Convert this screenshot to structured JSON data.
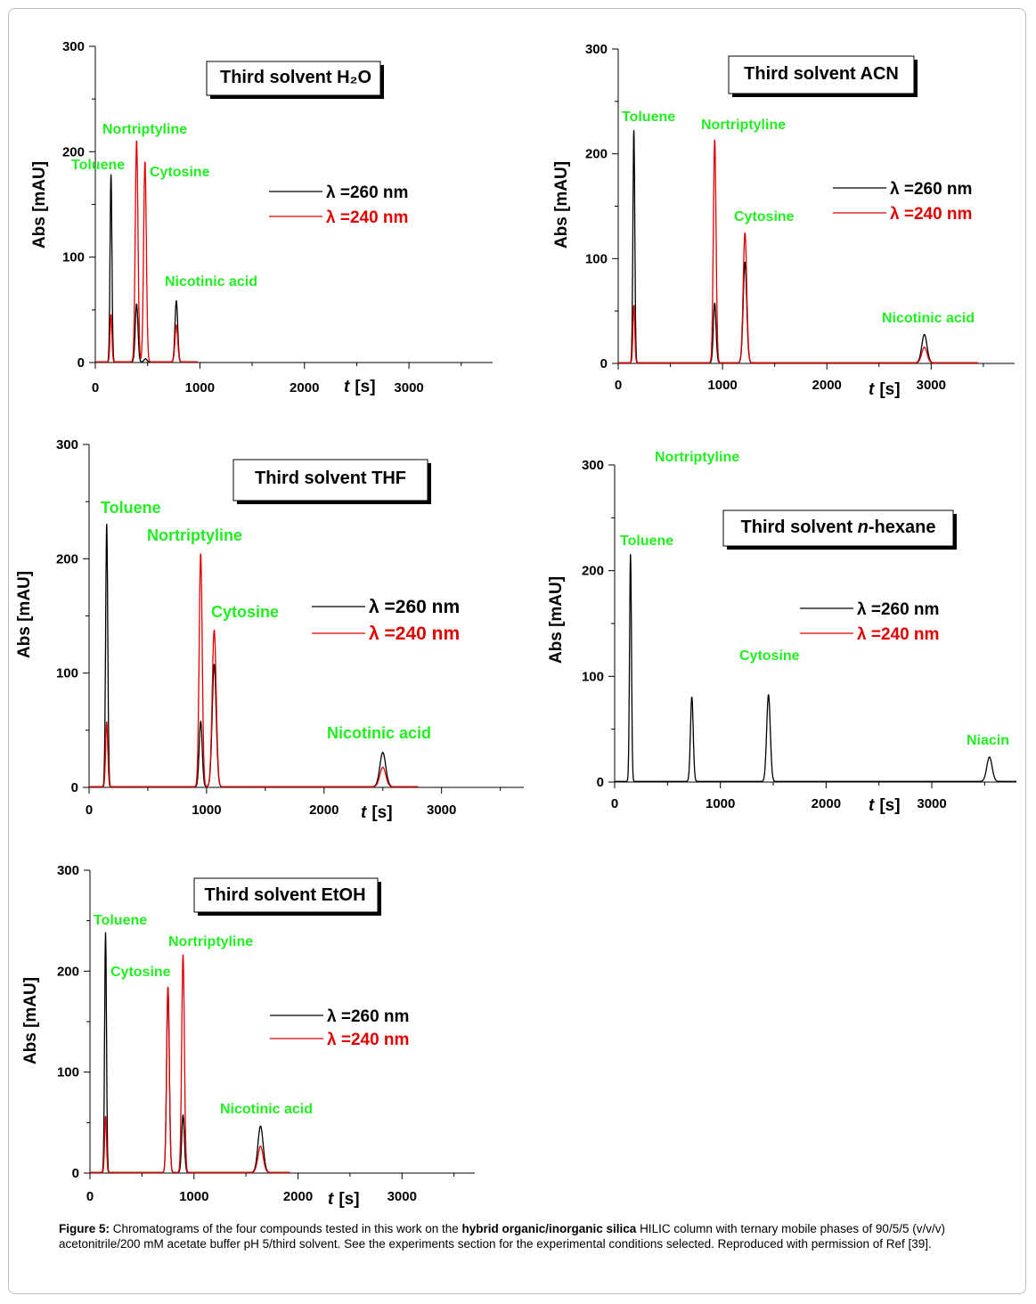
{
  "figure": {
    "caption_label": "Figure 5:",
    "caption_part1": "Chromatograms of the four compounds tested in this work on the",
    "caption_bold": "hybrid organic/inorganic silica",
    "caption_part2": "HILIC column with ternary mobile phases of 90/5/5 (v/v/v) acetonitrile/200 mM acetate buffer pH 5/third solvent. See the experiments section for the experimental conditions selected. Reproduced with permission of Ref [39]."
  },
  "colors": {
    "series_260": "#000000",
    "series_240": "#e00000",
    "peak_label": "#22ee22"
  },
  "chart_data": [
    {
      "type": "line",
      "title": "Third solvent H₂O",
      "ylabel": "Abs  [mAU]",
      "xlabel_italic": "t",
      "xlabel_unit": "[s]",
      "xlim": [
        0,
        3800
      ],
      "ylim": [
        0,
        300
      ],
      "xticks": [
        0,
        1000,
        2000,
        3000
      ],
      "yticks": [
        0,
        100,
        200,
        300
      ],
      "legend": [
        "λ =260 nm",
        "λ =240 nm"
      ],
      "peak_labels": [
        "Toluene",
        "Nortriptyline",
        "Cytosine",
        "Nicotinic acid"
      ],
      "series": [
        {
          "name": "λ =260 nm",
          "x_end": 980,
          "peaks": [
            {
              "t": 150,
              "h": 178
            },
            {
              "t": 395,
              "h": 55
            },
            {
              "t": 480,
              "h": 3
            },
            {
              "t": 775,
              "h": 58
            }
          ]
        },
        {
          "name": "λ =240 nm",
          "x_end": 980,
          "peaks": [
            {
              "t": 150,
              "h": 45
            },
            {
              "t": 395,
              "h": 210
            },
            {
              "t": 475,
              "h": 190
            },
            {
              "t": 775,
              "h": 35
            }
          ]
        }
      ]
    },
    {
      "type": "line",
      "title": "Third solvent ACN",
      "ylabel": "Abs  [mAU]",
      "xlabel_italic": "t",
      "xlabel_unit": "[s]",
      "xlim": [
        0,
        3800
      ],
      "ylim": [
        0,
        300
      ],
      "xticks": [
        0,
        1000,
        2000,
        3000
      ],
      "yticks": [
        0,
        100,
        200,
        300
      ],
      "legend": [
        "λ =260 nm",
        "λ =240 nm"
      ],
      "peak_labels": [
        "Toluene",
        "Nortriptyline",
        "Cytosine",
        "Nicotinic acid"
      ],
      "series": [
        {
          "name": "λ =260 nm",
          "x_end": 3450,
          "peaks": [
            {
              "t": 150,
              "h": 222
            },
            {
              "t": 925,
              "h": 57
            },
            {
              "t": 1215,
              "h": 96
            },
            {
              "t": 2935,
              "h": 27
            }
          ]
        },
        {
          "name": "λ =240 nm",
          "x_end": 3450,
          "peaks": [
            {
              "t": 150,
              "h": 55
            },
            {
              "t": 925,
              "h": 213
            },
            {
              "t": 1215,
              "h": 124
            },
            {
              "t": 2935,
              "h": 15
            }
          ]
        }
      ]
    },
    {
      "type": "line",
      "title": "Third solvent THF",
      "ylabel": "Abs  [mAU]",
      "xlabel_italic": "t",
      "xlabel_unit": "[s]",
      "xlim": [
        0,
        3700
      ],
      "ylim": [
        0,
        300
      ],
      "xticks": [
        0,
        1000,
        2000,
        3000
      ],
      "yticks": [
        0,
        100,
        200,
        300
      ],
      "legend": [
        "λ =260 nm",
        "λ =240 nm"
      ],
      "peak_labels": [
        "Toluene",
        "Nortriptyline",
        "Cytosine",
        "Nicotinic acid"
      ],
      "series": [
        {
          "name": "λ =260 nm",
          "x_end": 2800,
          "peaks": [
            {
              "t": 150,
              "h": 230
            },
            {
              "t": 950,
              "h": 57
            },
            {
              "t": 1065,
              "h": 107
            },
            {
              "t": 2500,
              "h": 30
            }
          ]
        },
        {
          "name": "λ =240 nm",
          "x_end": 2800,
          "peaks": [
            {
              "t": 150,
              "h": 57
            },
            {
              "t": 950,
              "h": 204
            },
            {
              "t": 1065,
              "h": 137
            },
            {
              "t": 2500,
              "h": 17
            }
          ]
        }
      ]
    },
    {
      "type": "line",
      "title_prefix": "Third solvent ",
      "title_italic": "n",
      "title_suffix": "-hexane",
      "ylabel": "Abs  [mAU]",
      "xlabel_italic": "t",
      "xlabel_unit": "[s]",
      "xlim": [
        0,
        3800
      ],
      "ylim": [
        0,
        300
      ],
      "xticks": [
        0,
        1000,
        2000,
        3000
      ],
      "yticks": [
        0,
        100,
        200,
        300
      ],
      "legend": [
        "λ =260 nm",
        "λ =240 nm"
      ],
      "peak_labels": [
        "Toluene",
        "Nortriptyline",
        "Cytosine",
        "Niacin"
      ],
      "series": [
        {
          "name": "λ =260 nm",
          "x_end": 3800,
          "peaks": [
            {
              "t": 150,
              "h": 215
            },
            {
              "t": 730,
              "h": 80
            },
            {
              "t": 1455,
              "h": 82
            },
            {
              "t": 3545,
              "h": 23
            }
          ]
        }
      ]
    },
    {
      "type": "line",
      "title": "Third solvent EtOH",
      "ylabel": "Abs  [mAU]",
      "xlabel_italic": "t",
      "xlabel_unit": "[s]",
      "xlim": [
        0,
        3700
      ],
      "ylim": [
        0,
        300
      ],
      "xticks": [
        0,
        1000,
        2000,
        3000
      ],
      "yticks": [
        0,
        100,
        200,
        300
      ],
      "legend": [
        "λ =260 nm",
        "λ =240 nm"
      ],
      "peak_labels": [
        "Toluene",
        "Cytosine",
        "Nortriptyline",
        "Nicotinic acid"
      ],
      "series": [
        {
          "name": "λ =260 nm",
          "x_end": 1920,
          "peaks": [
            {
              "t": 150,
              "h": 238
            },
            {
              "t": 750,
              "h": 183
            },
            {
              "t": 895,
              "h": 57
            },
            {
              "t": 1640,
              "h": 46
            }
          ]
        },
        {
          "name": "λ =240 nm",
          "x_end": 1920,
          "peaks": [
            {
              "t": 150,
              "h": 56
            },
            {
              "t": 750,
              "h": 184
            },
            {
              "t": 895,
              "h": 216
            },
            {
              "t": 1640,
              "h": 26
            }
          ]
        }
      ]
    }
  ]
}
